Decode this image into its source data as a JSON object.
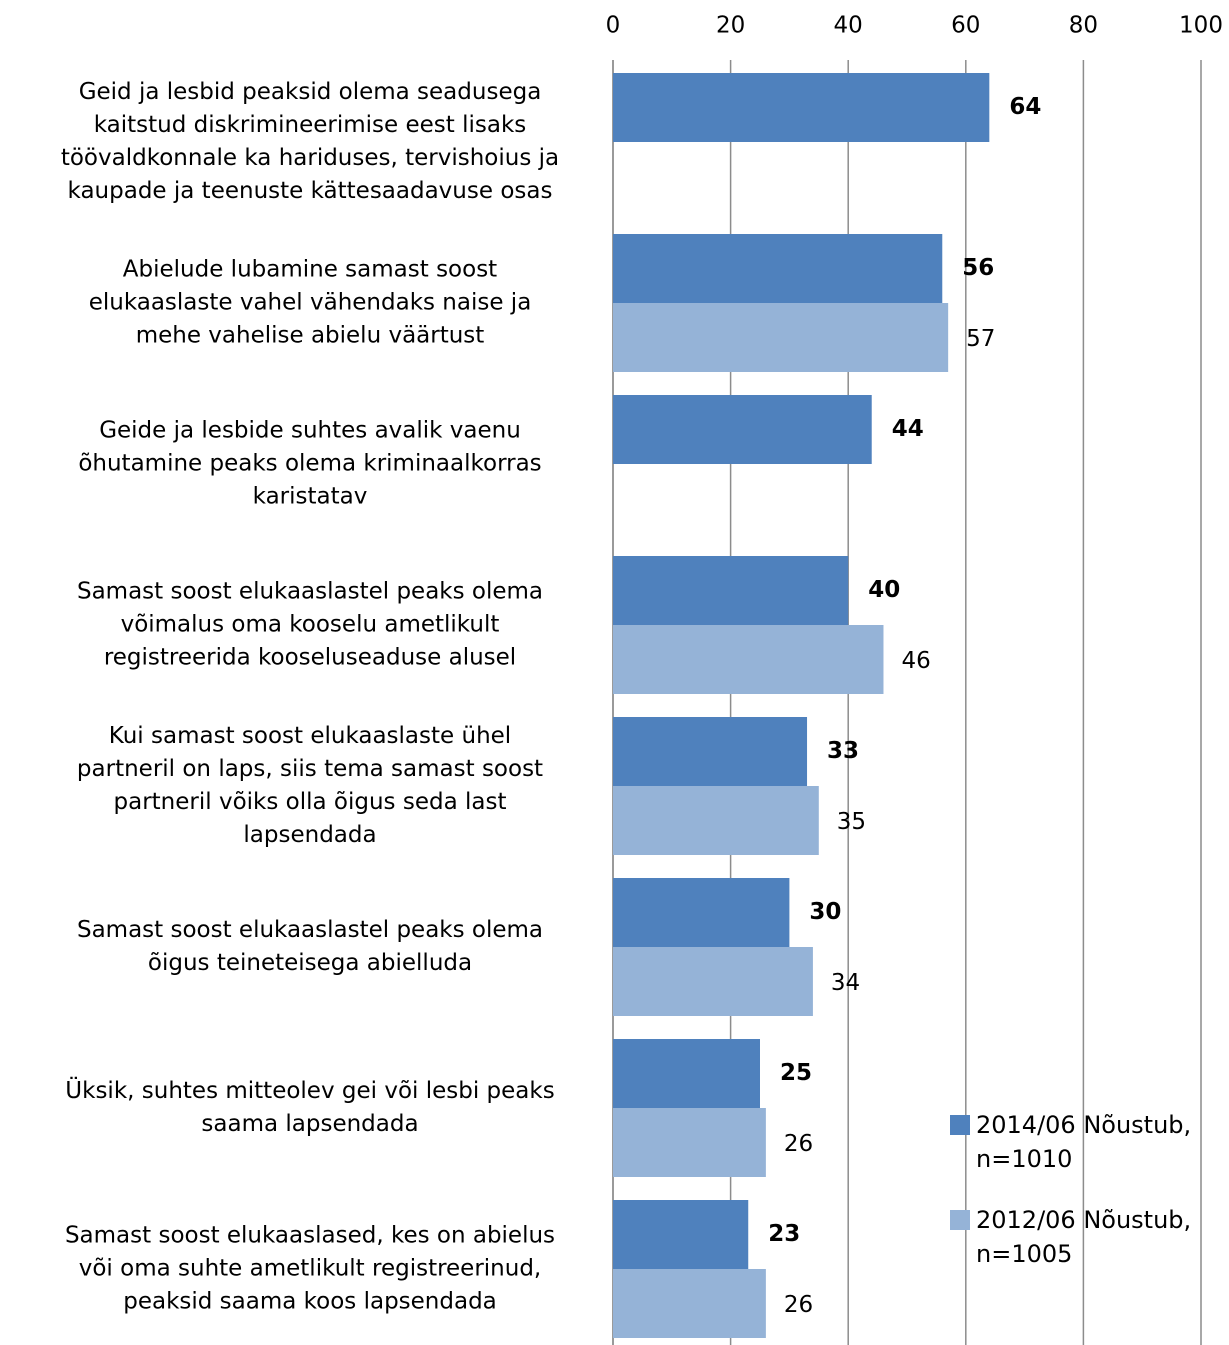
{
  "chart_data": {
    "type": "bar",
    "orientation": "horizontal",
    "categories": [
      [
        "Geid ja lesbid peaksid olema seadusega",
        "kaitstud diskrimineerimise eest lisaks",
        "töövaldkonnale ka hariduses, tervishoius ja",
        "kaupade ja teenuste kättesaadavuse osas"
      ],
      [
        "Abielude lubamine samast soost",
        "elukaaslaste vahel vähendaks naise ja",
        "mehe vahelise abielu väärtust"
      ],
      [
        "Geide ja lesbide suhtes avalik vaenu",
        "õhutamine peaks olema kriminaalkorras",
        "karistatav"
      ],
      [
        "Samast soost elukaaslastel peaks olema",
        "võimalus oma kooselu ametlikult",
        "registreerida kooseluseaduse alusel"
      ],
      [
        "Kui samast soost elukaaslaste ühel",
        "partneril on laps, siis tema samast soost",
        "partneril võiks olla õigus seda last",
        "lapsendada"
      ],
      [
        "Samast soost elukaaslastel peaks olema",
        "õigus teineteisega abielluda"
      ],
      [
        "Üksik, suhtes mitteolev gei või lesbi peaks",
        "saama lapsendada"
      ],
      [
        "Samast soost elukaaslased, kes on abielus",
        "või oma suhte ametlikult registreerinud,",
        "peaksid saama koos lapsendada"
      ]
    ],
    "series": [
      {
        "name": "2014/06 Nõustub, n=1010",
        "color": "#4f81bd",
        "values": [
          64,
          56,
          44,
          40,
          33,
          30,
          25,
          23
        ]
      },
      {
        "name": "2012/06 Nõustub, n=1005",
        "color": "#95b3d7",
        "values": [
          null,
          57,
          null,
          46,
          35,
          34,
          26,
          26
        ]
      }
    ],
    "xlim": [
      0,
      100
    ],
    "xticks": [
      0,
      20,
      40,
      60,
      80,
      100
    ],
    "grid": true,
    "legend": "lower right"
  }
}
